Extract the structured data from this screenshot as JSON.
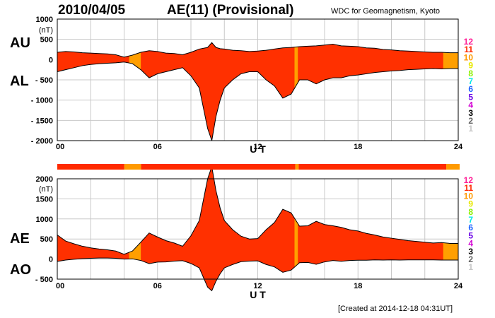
{
  "header": {
    "date": "2010/04/05",
    "title": "AE(11) (Provisional)",
    "source": "WDC for Geomagnetism, Kyoto",
    "created": "[Created at 2014-12-18 04:31UT]"
  },
  "colors": {
    "main_fill": "#ff3000",
    "alt_fill": "#ff9f00",
    "outline": "#000000",
    "grid": "#c8c8c8"
  },
  "legend": [
    {
      "label": "12",
      "color": "#ff1e96"
    },
    {
      "label": "11",
      "color": "#ff2a00"
    },
    {
      "label": "10",
      "color": "#ff9a00"
    },
    {
      "label": "9",
      "color": "#e8e800"
    },
    {
      "label": "8",
      "color": "#8cf000"
    },
    {
      "label": "7",
      "color": "#00e8e8"
    },
    {
      "label": "6",
      "color": "#1e64ff"
    },
    {
      "label": "5",
      "color": "#6a00e6"
    },
    {
      "label": "4",
      "color": "#d200d2"
    },
    {
      "label": "3",
      "color": "#000000"
    },
    {
      "label": "2",
      "color": "#646464"
    },
    {
      "label": "1",
      "color": "#c8c8c8"
    }
  ],
  "station_bar": [
    {
      "start": 0,
      "end": 4,
      "level": 11
    },
    {
      "start": 4,
      "end": 5,
      "level": 10
    },
    {
      "start": 5,
      "end": 14.2,
      "level": 11
    },
    {
      "start": 14.2,
      "end": 14.4,
      "level": 10
    },
    {
      "start": 14.4,
      "end": 23.2,
      "level": 11
    },
    {
      "start": 23.2,
      "end": 24,
      "level": 10
    }
  ],
  "chart_data": [
    {
      "type": "area",
      "panel": "AU/AL",
      "labels": [
        "AU",
        "AL"
      ],
      "unit": "(nT)",
      "xlabel": "U T",
      "xticks": [
        0,
        6,
        12,
        18,
        24
      ],
      "xtick_labels": [
        "00",
        "06",
        "12",
        "18",
        "24"
      ],
      "xlim": [
        0,
        24
      ],
      "ylim": [
        -2000,
        1000
      ],
      "yticks": [
        1000,
        500,
        0,
        -500,
        -1000,
        -1500,
        -2000
      ],
      "ytick_labels": [
        "1000",
        "500",
        "0",
        "- 500",
        "- 1000",
        "- 1500",
        "- 2000"
      ],
      "x": [
        0,
        0.5,
        1,
        1.5,
        2,
        2.5,
        3,
        3.5,
        4,
        4.5,
        5,
        5.5,
        6,
        6.5,
        7,
        7.5,
        8,
        8.5,
        9,
        9.25,
        9.5,
        9.75,
        10,
        10.5,
        11,
        11.5,
        12,
        12.5,
        13,
        13.5,
        14,
        14.5,
        15,
        15.5,
        16,
        16.5,
        17,
        17.5,
        18,
        18.5,
        19,
        19.5,
        20,
        20.5,
        21,
        21.5,
        22,
        22.5,
        23,
        23.5,
        24
      ],
      "series": [
        {
          "name": "AU",
          "values": [
            180,
            200,
            190,
            170,
            160,
            150,
            140,
            120,
            60,
            110,
            180,
            220,
            200,
            160,
            150,
            120,
            180,
            260,
            300,
            420,
            300,
            270,
            260,
            230,
            220,
            200,
            210,
            230,
            260,
            290,
            300,
            320,
            330,
            340,
            360,
            380,
            340,
            330,
            320,
            290,
            280,
            250,
            240,
            220,
            210,
            200,
            190,
            180,
            180,
            170,
            170
          ]
        },
        {
          "name": "AL",
          "values": [
            -300,
            -250,
            -200,
            -150,
            -120,
            -100,
            -90,
            -80,
            -60,
            -100,
            -250,
            -450,
            -350,
            -300,
            -250,
            -200,
            -400,
            -700,
            -1700,
            -2000,
            -1400,
            -1000,
            -700,
            -500,
            -350,
            -300,
            -300,
            -500,
            -650,
            -950,
            -850,
            -500,
            -500,
            -600,
            -500,
            -450,
            -450,
            -400,
            -380,
            -350,
            -320,
            -300,
            -280,
            -270,
            -250,
            -240,
            -230,
            -220,
            -230,
            -220,
            -220
          ]
        }
      ],
      "alt_ranges": [
        [
          4.3,
          5.0
        ],
        [
          14.2,
          14.4
        ],
        [
          23.1,
          24
        ]
      ]
    },
    {
      "type": "area",
      "panel": "AE/AO",
      "labels": [
        "AE",
        "AO"
      ],
      "unit": "(nT)",
      "xlabel": "U T",
      "xticks": [
        0,
        6,
        12,
        18,
        24
      ],
      "xtick_labels": [
        "00",
        "06",
        "12",
        "18",
        "24"
      ],
      "xlim": [
        0,
        24
      ],
      "ylim": [
        -500,
        2000
      ],
      "yticks": [
        2000,
        1500,
        1000,
        500,
        0,
        -500
      ],
      "ytick_labels": [
        "2000",
        "1500",
        "1000",
        "500",
        "0",
        "- 500"
      ],
      "x": [
        0,
        0.5,
        1,
        1.5,
        2,
        2.5,
        3,
        3.5,
        4,
        4.5,
        5,
        5.5,
        6,
        6.5,
        7,
        7.5,
        8,
        8.5,
        9,
        9.25,
        9.5,
        9.75,
        10,
        10.5,
        11,
        11.5,
        12,
        12.5,
        13,
        13.5,
        14,
        14.5,
        15,
        15.5,
        16,
        16.5,
        17,
        17.5,
        18,
        18.5,
        19,
        19.5,
        20,
        20.5,
        21,
        21.5,
        22,
        22.5,
        23,
        23.5,
        24
      ],
      "series": [
        {
          "name": "AE",
          "values": [
            600,
            450,
            380,
            320,
            280,
            250,
            230,
            200,
            120,
            200,
            420,
            650,
            550,
            460,
            400,
            320,
            580,
            960,
            2000,
            2300,
            1700,
            1270,
            960,
            730,
            570,
            500,
            510,
            730,
            910,
            1240,
            1150,
            820,
            830,
            940,
            860,
            830,
            790,
            730,
            700,
            640,
            600,
            550,
            520,
            490,
            460,
            440,
            420,
            400,
            410,
            390,
            390
          ]
        },
        {
          "name": "AO",
          "values": [
            -60,
            -25,
            -5,
            10,
            20,
            25,
            25,
            20,
            0,
            5,
            -35,
            -115,
            -75,
            -70,
            -50,
            -40,
            -110,
            -220,
            -700,
            -790,
            -550,
            -365,
            -220,
            -135,
            -65,
            -50,
            -45,
            -135,
            -195,
            -330,
            -275,
            -90,
            -85,
            -130,
            -70,
            -35,
            -55,
            -35,
            -30,
            -30,
            -20,
            -25,
            -20,
            -25,
            -20,
            -20,
            -20,
            -20,
            -25,
            -25,
            -25
          ]
        }
      ],
      "alt_ranges": [
        [
          4.3,
          5.0
        ],
        [
          14.2,
          14.4
        ],
        [
          23.1,
          24
        ]
      ]
    }
  ]
}
